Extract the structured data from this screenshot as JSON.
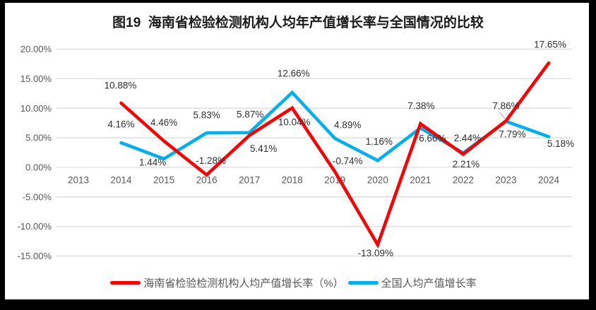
{
  "title": "图19  海南省检验检测机构人均年产值增长率与全国情况的比较",
  "colors": {
    "background": "#ffffff",
    "frame": "#000000",
    "gridline": "#d9d9d9",
    "axis_label": "#595959",
    "data_label": "#303030",
    "legend_label": "#595959",
    "leader_line": "#a6a6a6",
    "series_hainan": "#ff0000",
    "series_national": "#00b0f0"
  },
  "chart_data": {
    "type": "line",
    "title": "图19  海南省检验检测机构人均年产值增长率与全国情况的比较",
    "categories": [
      "2013",
      "2014",
      "2015",
      "2016",
      "2017",
      "2018",
      "2019",
      "2020",
      "2021",
      "2022",
      "2023",
      "2024"
    ],
    "series": [
      {
        "id": "hainan",
        "name": "海南省检验检测机构人均产值增长率（%）",
        "color": "#ff0000",
        "values": [
          null,
          10.88,
          4.46,
          -1.28,
          5.41,
          10.04,
          -0.74,
          -13.09,
          7.38,
          2.21,
          7.86,
          17.65
        ],
        "label_offsets": [
          null,
          [
            -1,
            -25
          ],
          [
            0,
            -26
          ],
          [
            6,
            -20
          ],
          [
            20,
            19
          ],
          [
            3,
            20
          ],
          [
            18,
            -15
          ],
          [
            -3,
            12
          ],
          [
            1,
            -25
          ],
          [
            4,
            14
          ],
          [
            0,
            -21
          ],
          [
            2,
            -26
          ]
        ],
        "leader_at": 10
      },
      {
        "id": "national",
        "name": "全国人均产值增长率",
        "color": "#00b0f0",
        "values": [
          null,
          4.16,
          1.44,
          5.83,
          5.87,
          12.66,
          4.89,
          1.16,
          6.66,
          2.44,
          7.79,
          5.18
        ],
        "label_offsets": [
          null,
          [
            0,
            -26
          ],
          [
            -16,
            5
          ],
          [
            0,
            -25
          ],
          [
            1,
            -26
          ],
          [
            2,
            -27
          ],
          [
            18,
            -19
          ],
          [
            2,
            -27
          ],
          [
            17,
            15
          ],
          [
            6,
            -21
          ],
          [
            9,
            18
          ],
          [
            17,
            10
          ]
        ]
      }
    ],
    "y_ticks": [
      20,
      15,
      10,
      5,
      0,
      -5,
      -10,
      -15
    ],
    "y_tick_labels": [
      "20.00%",
      "15.00%",
      "10.00%",
      "5.00%",
      "0.00%",
      "-5.00%",
      "-10.00%",
      "-15.00%"
    ],
    "ylim": [
      -17.5,
      21.5
    ],
    "grid": true,
    "data_labels": true,
    "data_label_format": "0.00%",
    "legend_position": "bottom",
    "x_axis_labels_position": "next-to-zero-axis"
  }
}
